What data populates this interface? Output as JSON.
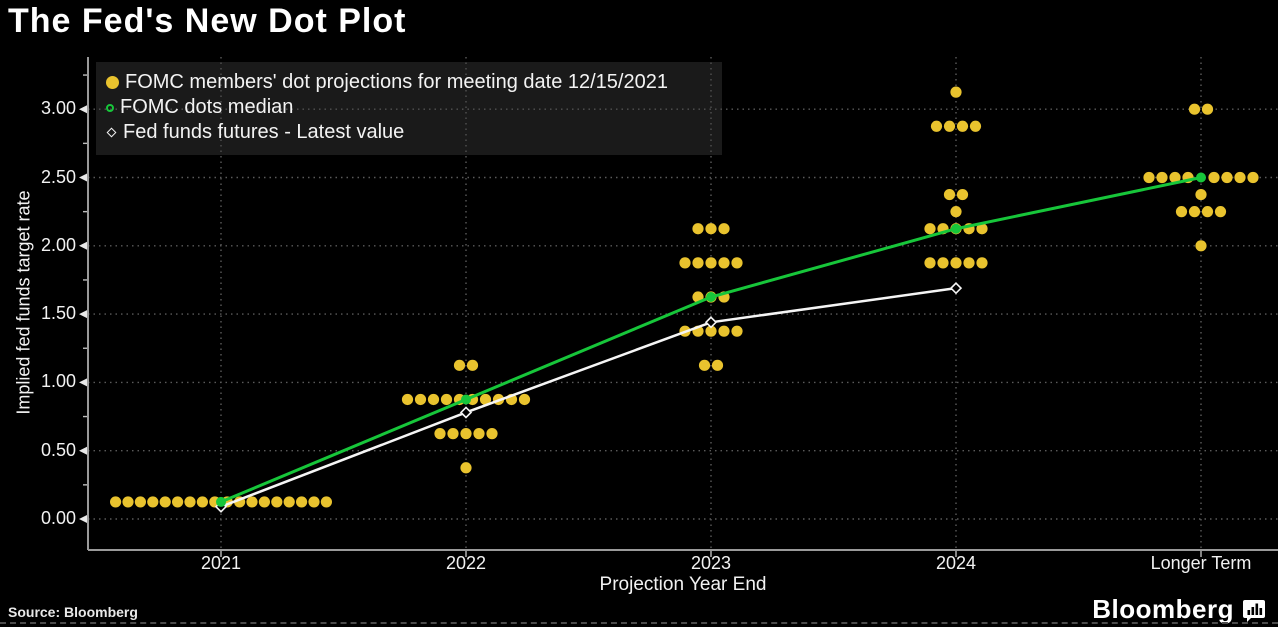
{
  "title": "The Fed's New Dot Plot",
  "source": "Source: Bloomberg",
  "brand": {
    "name": "Bloomberg"
  },
  "legend": [
    {
      "label": "FOMC members' dot projections for meeting date 12/15/2021",
      "marker": "yellow-dot",
      "color": "#e9c32e"
    },
    {
      "label": "FOMC dots median",
      "marker": "green-ring",
      "color": "#17c63a"
    },
    {
      "label": "Fed funds futures - Latest value",
      "marker": "white-diamond",
      "color": "#ffffff"
    }
  ],
  "chart_data": {
    "type": "scatter",
    "title": "The Fed's New Dot Plot",
    "xlabel": "Projection Year End",
    "ylabel": "Implied fed funds target rate",
    "categories": [
      "2021",
      "2022",
      "2023",
      "2024",
      "Longer Term"
    ],
    "ylim": [
      0,
      3.375
    ],
    "yticks": [
      "0.00",
      "0.50",
      "1.00",
      "1.50",
      "2.00",
      "2.50",
      "3.00"
    ],
    "grid": "dotted-both-axes",
    "legend_position": "top-left",
    "colors": {
      "dots": "#e9c32e",
      "median_line": "#17c63a",
      "futures_line": "#f5f5f5",
      "grid": "#5a5a5a",
      "axis": "#9a9a9a"
    },
    "dot_groups": [
      {
        "category": "2021",
        "rows": [
          {
            "rate": 0.125,
            "count": 18
          }
        ]
      },
      {
        "category": "2022",
        "rows": [
          {
            "rate": 1.125,
            "count": 2
          },
          {
            "rate": 0.875,
            "count": 10
          },
          {
            "rate": 0.625,
            "count": 5
          },
          {
            "rate": 0.375,
            "count": 1
          }
        ]
      },
      {
        "category": "2023",
        "rows": [
          {
            "rate": 2.125,
            "count": 3
          },
          {
            "rate": 1.875,
            "count": 5
          },
          {
            "rate": 1.625,
            "count": 3
          },
          {
            "rate": 1.375,
            "count": 5
          },
          {
            "rate": 1.125,
            "count": 2
          }
        ]
      },
      {
        "category": "2024",
        "rows": [
          {
            "rate": 3.125,
            "count": 1
          },
          {
            "rate": 2.875,
            "count": 4
          },
          {
            "rate": 2.375,
            "count": 2
          },
          {
            "rate": 2.25,
            "count": 1
          },
          {
            "rate": 2.125,
            "count": 5
          },
          {
            "rate": 1.875,
            "count": 5
          }
        ]
      },
      {
        "category": "Longer Term",
        "rows": [
          {
            "rate": 3.0,
            "count": 2
          },
          {
            "rate": 2.5,
            "count": 8,
            "skip_center": true
          },
          {
            "rate": 2.375,
            "count": 1
          },
          {
            "rate": 2.25,
            "count": 4
          },
          {
            "rate": 2.0,
            "count": 1
          }
        ]
      }
    ],
    "series": [
      {
        "name": "Fed funds futures - Latest value",
        "marker": "diamond",
        "color": "#f5f5f5",
        "x": [
          "2021",
          "2022",
          "2023",
          "2024"
        ],
        "values": [
          0.09,
          0.78,
          1.44,
          1.69
        ]
      },
      {
        "name": "FOMC dots median",
        "marker": "circle",
        "color": "#17c63a",
        "x": [
          "2021",
          "2022",
          "2023",
          "2024",
          "Longer Term"
        ],
        "values": [
          0.125,
          0.875,
          1.625,
          2.125,
          2.5
        ]
      }
    ]
  }
}
